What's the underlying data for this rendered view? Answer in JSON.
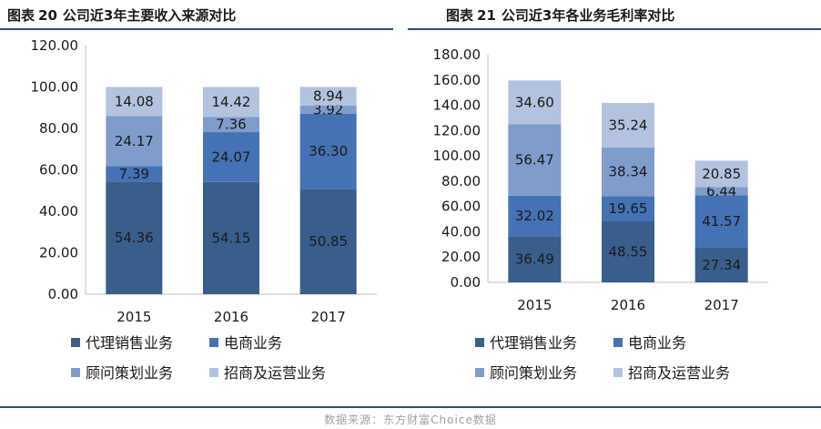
{
  "figures": [
    {
      "prefix": "图表",
      "number": "20",
      "title": "公司近3年主要收入来源对比"
    },
    {
      "prefix": "图表",
      "number": "21",
      "title": "公司近3年各业务毛利率对比"
    }
  ],
  "source": "数据来源：东方财富Choice数据",
  "colors": {
    "series": [
      "#3a5e8c",
      "#4472b4",
      "#7f9ccb",
      "#b3c2de"
    ],
    "rule": "#2f4f7a",
    "axis_text": "#1a1a1a"
  },
  "chart_data": [
    {
      "type": "bar",
      "stacked": true,
      "categories": [
        "2015",
        "2016",
        "2017"
      ],
      "series": [
        {
          "name": "代理销售业务",
          "values": [
            54.36,
            54.15,
            50.85
          ]
        },
        {
          "name": "电商业务",
          "values": [
            7.39,
            24.07,
            36.3
          ]
        },
        {
          "name": "顾问策划业务",
          "values": [
            24.17,
            7.36,
            3.92
          ]
        },
        {
          "name": "招商及运营业务",
          "values": [
            14.08,
            14.42,
            8.94
          ]
        }
      ],
      "ylim": [
        0,
        120
      ],
      "yticks": [
        "0.00",
        "20.00",
        "40.00",
        "60.00",
        "80.00",
        "100.00",
        "120.00"
      ],
      "grid": false,
      "legend": "bottom"
    },
    {
      "type": "bar",
      "stacked": true,
      "categories": [
        "2015",
        "2016",
        "2017"
      ],
      "series": [
        {
          "name": "代理销售业务",
          "values": [
            36.49,
            48.55,
            27.34
          ]
        },
        {
          "name": "电商业务",
          "values": [
            32.02,
            19.65,
            41.57
          ]
        },
        {
          "name": "顾问策划业务",
          "values": [
            56.47,
            38.34,
            6.44
          ]
        },
        {
          "name": "招商及运营业务",
          "values": [
            34.6,
            35.24,
            20.85
          ]
        }
      ],
      "ylim": [
        0,
        180
      ],
      "yticks": [
        "0.00",
        "20.00",
        "40.00",
        "60.00",
        "80.00",
        "100.00",
        "120.00",
        "140.00",
        "160.00",
        "180.00"
      ],
      "grid": false,
      "legend": "bottom"
    }
  ]
}
